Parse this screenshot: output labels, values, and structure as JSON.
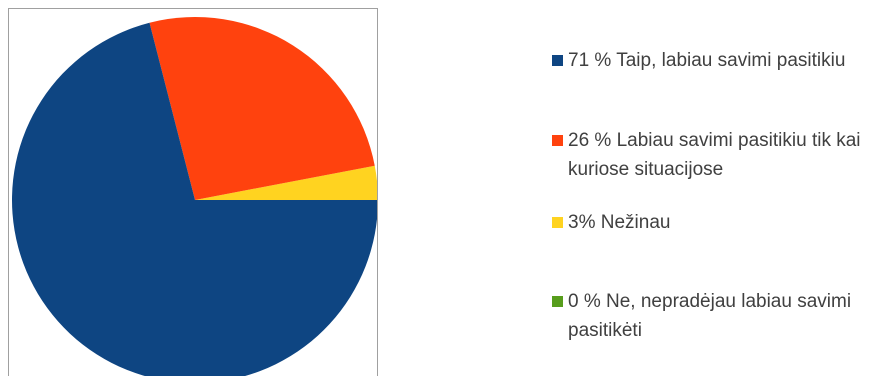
{
  "chart_data": {
    "type": "pie",
    "title": "",
    "slices": [
      {
        "label": "71 % Taip, labiau savimi pasitikiu",
        "value": 71,
        "color": "#0e4582"
      },
      {
        "label": "26 % Labiau savimi pasitikiu tik kai kuriose situacijose",
        "value": 26,
        "color": "#ff420e"
      },
      {
        "label": "3% Nežinau",
        "value": 3,
        "color": "#ffd320"
      },
      {
        "label": "0 % Ne, nepradėjau labiau savimi pasitikėti",
        "value": 0,
        "color": "#579d1c"
      }
    ],
    "legend_position": "right"
  }
}
